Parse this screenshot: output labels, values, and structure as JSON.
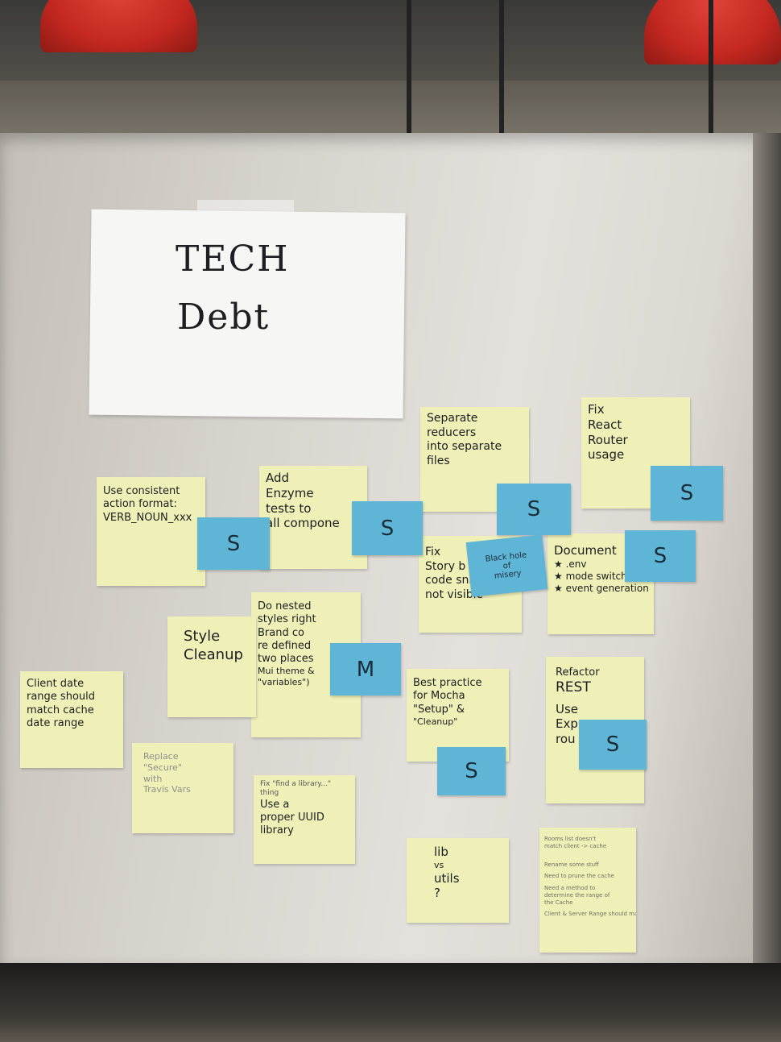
{
  "board": {
    "title_line1": "TECH",
    "title_line2": "Debt"
  },
  "notes": [
    {
      "lines": [
        "Use consistent",
        "action format:",
        "VERB_NOUN_xxx"
      ]
    },
    {
      "lines": [
        "Add",
        "Enzyme",
        "tests to",
        "all compone"
      ]
    },
    {
      "lines": [
        "Separate",
        "reducers",
        "into separate",
        "files"
      ]
    },
    {
      "lines": [
        "Fix",
        "React",
        "Router",
        "usage"
      ]
    },
    {
      "lines": [
        "Fix",
        "Story b",
        "code snippets",
        "not visible"
      ]
    },
    {
      "lines": [
        "Document",
        "★ .env",
        "★ mode switching",
        "★ event generation"
      ]
    },
    {
      "lines": [
        "Do nested",
        "styles right",
        "Brand co",
        "re defined",
        "two places",
        "Mui theme &",
        "\"variables\")"
      ]
    },
    {
      "lines": [
        "Style",
        "Cleanup"
      ]
    },
    {
      "lines": [
        "Client date",
        "range should",
        "match cache",
        "date range"
      ]
    },
    {
      "lines": [
        "Replace",
        "\"Secure\"",
        "with",
        "Travis Vars"
      ]
    },
    {
      "lines": [
        "Fix \"find a library...\"",
        "thing",
        "Use a",
        "proper UUID",
        "library"
      ]
    },
    {
      "lines": [
        "Best practice",
        "for Mocha",
        "\"Setup\" &",
        "\"Cleanup\""
      ]
    },
    {
      "lines": [
        "Refactor",
        "REST",
        "Use",
        "Exp",
        "rou"
      ]
    },
    {
      "lines": [
        "lib",
        "vs",
        "utils",
        "?"
      ]
    },
    {
      "lines": [
        "Rooms list doesn't",
        "match client -> cache",
        "Rename some stuff",
        "Need to prune the cache",
        "Need a method to",
        "determine the range of",
        "the Cache",
        "Client & Server Range should match"
      ]
    }
  ],
  "sizes": [
    {
      "label": "S"
    },
    {
      "label": "S"
    },
    {
      "label": "S"
    },
    {
      "label": "S"
    },
    {
      "label": "S"
    },
    {
      "label": "M"
    },
    {
      "label": "S"
    },
    {
      "label": "S"
    }
  ],
  "special": {
    "label_lines": [
      "Black hole",
      "of",
      "misery"
    ]
  }
}
